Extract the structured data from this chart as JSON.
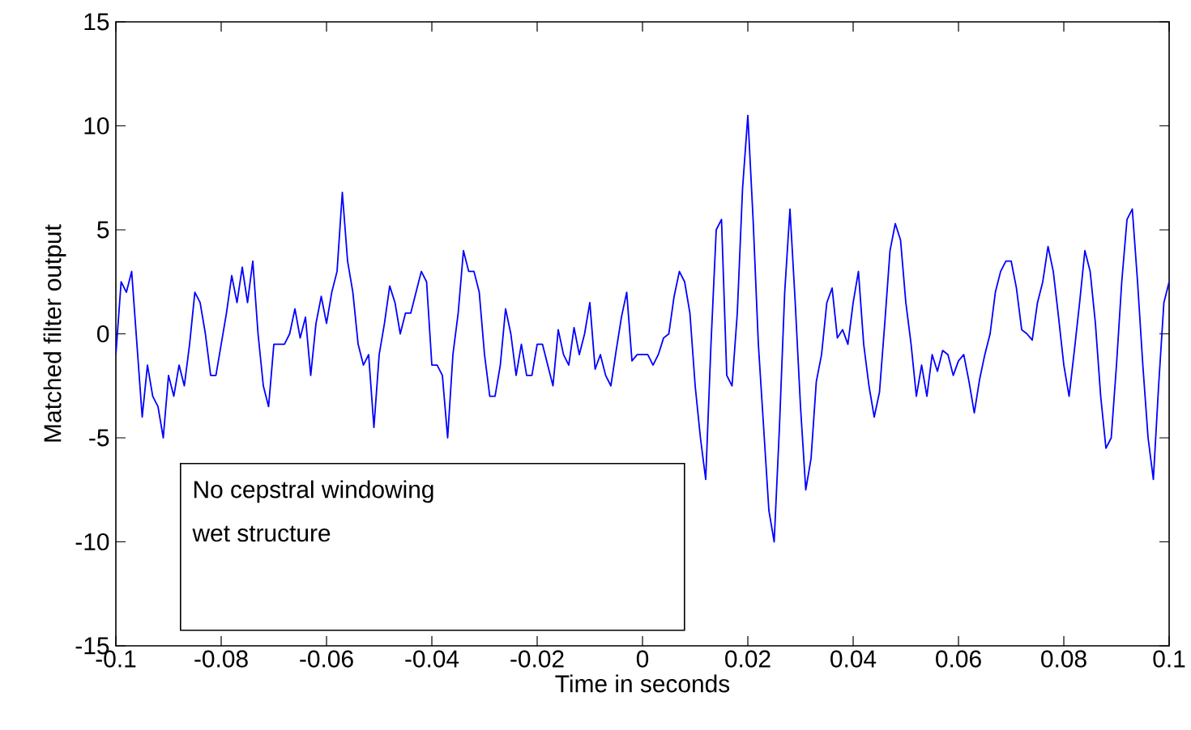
{
  "chart_data": {
    "type": "line",
    "xlabel": "Time in seconds",
    "ylabel": "Matched filter output",
    "annotations": [
      "No cepstral windowing",
      "wet structure"
    ],
    "xlim": [
      -0.1,
      0.1
    ],
    "ylim": [
      -15,
      15
    ],
    "xticks": [
      -0.1,
      -0.08,
      -0.06,
      -0.04,
      -0.02,
      0,
      0.02,
      0.04,
      0.06,
      0.08,
      0.1
    ],
    "yticks": [
      -15,
      -10,
      -5,
      0,
      5,
      10,
      15
    ],
    "grid": false,
    "marker": "none",
    "line_style": "solid",
    "series": [
      {
        "color": "#0000ff",
        "x": [
          -0.1,
          -0.099,
          -0.098,
          -0.097,
          -0.096,
          -0.095,
          -0.094,
          -0.093,
          -0.092,
          -0.091,
          -0.09,
          -0.089,
          -0.088,
          -0.087,
          -0.086,
          -0.085,
          -0.084,
          -0.083,
          -0.082,
          -0.081,
          -0.08,
          -0.079,
          -0.078,
          -0.077,
          -0.076,
          -0.075,
          -0.074,
          -0.073,
          -0.072,
          -0.071,
          -0.07,
          -0.069,
          -0.068,
          -0.067,
          -0.066,
          -0.065,
          -0.064,
          -0.063,
          -0.062,
          -0.061,
          -0.06,
          -0.059,
          -0.058,
          -0.057,
          -0.056,
          -0.055,
          -0.054,
          -0.053,
          -0.052,
          -0.051,
          -0.05,
          -0.049,
          -0.048,
          -0.047,
          -0.046,
          -0.045,
          -0.044,
          -0.043,
          -0.042,
          -0.041,
          -0.04,
          -0.039,
          -0.038,
          -0.037,
          -0.036,
          -0.035,
          -0.034,
          -0.033,
          -0.032,
          -0.031,
          -0.03,
          -0.029,
          -0.028,
          -0.027,
          -0.026,
          -0.025,
          -0.024,
          -0.023,
          -0.022,
          -0.021,
          -0.02,
          -0.019,
          -0.018,
          -0.017,
          -0.016,
          -0.015,
          -0.014,
          -0.013,
          -0.012,
          -0.011,
          -0.01,
          -0.009,
          -0.008,
          -0.007,
          -0.006,
          -0.005,
          -0.004,
          -0.003,
          -0.002,
          -0.001,
          0,
          0.001,
          0.002,
          0.003,
          0.004,
          0.005,
          0.006,
          0.007,
          0.008,
          0.009,
          0.01,
          0.011,
          0.012,
          0.013,
          0.014,
          0.015,
          0.016,
          0.017,
          0.018,
          0.019,
          0.02,
          0.021,
          0.022,
          0.023,
          0.024,
          0.025,
          0.026,
          0.027,
          0.028,
          0.029,
          0.03,
          0.031,
          0.032,
          0.033,
          0.034,
          0.035,
          0.036,
          0.037,
          0.038,
          0.039,
          0.04,
          0.041,
          0.042,
          0.043,
          0.044,
          0.045,
          0.046,
          0.047,
          0.048,
          0.049,
          0.05,
          0.051,
          0.052,
          0.053,
          0.054,
          0.055,
          0.056,
          0.057,
          0.058,
          0.059,
          0.06,
          0.061,
          0.062,
          0.063,
          0.064,
          0.065,
          0.066,
          0.067,
          0.068,
          0.069,
          0.07,
          0.071,
          0.072,
          0.073,
          0.074,
          0.075,
          0.076,
          0.077,
          0.078,
          0.079,
          0.08,
          0.081,
          0.082,
          0.083,
          0.084,
          0.085,
          0.086,
          0.087,
          0.088,
          0.089,
          0.09,
          0.091,
          0.092,
          0.093,
          0.094,
          0.095,
          0.096,
          0.097,
          0.098,
          0.099,
          0.1
        ],
        "values": [
          -1,
          2.5,
          2,
          3,
          -0.5,
          -4,
          -1.5,
          -3,
          -3.5,
          -5,
          -2,
          -3,
          -1.5,
          -2.5,
          -0.5,
          2,
          1.5,
          0,
          -2,
          -2,
          -0.5,
          1,
          2.8,
          1.5,
          3.2,
          1.5,
          3.5,
          0,
          -2.5,
          -3.5,
          -0.5,
          -0.5,
          -0.5,
          0,
          1.2,
          -0.2,
          0.8,
          -2,
          0.5,
          1.8,
          0.5,
          2,
          3,
          6.8,
          3.5,
          2,
          -0.5,
          -1.5,
          -1,
          -4.5,
          -1,
          0.5,
          2.3,
          1.5,
          0,
          1,
          1,
          2,
          3,
          2.5,
          -1.5,
          -1.5,
          -2,
          -5,
          -1,
          1,
          4,
          3,
          3,
          2,
          -1,
          -3,
          -3,
          -1.5,
          1.2,
          0,
          -2,
          -0.5,
          -2,
          -2,
          -0.5,
          -0.5,
          -1.5,
          -2.5,
          0.2,
          -1,
          -1.5,
          0.3,
          -1,
          0,
          1.5,
          -1.7,
          -1,
          -2,
          -2.5,
          -0.8,
          0.8,
          2,
          -1.3,
          -1,
          -1,
          -1,
          -1.5,
          -1,
          -0.2,
          0,
          1.8,
          3,
          2.5,
          1,
          -2.5,
          -5,
          -7,
          -0.5,
          5,
          5.5,
          -2,
          -2.5,
          1,
          7,
          10.5,
          5.5,
          -0.5,
          -4.5,
          -8.5,
          -10,
          -4.5,
          2,
          6,
          1.5,
          -3.5,
          -7.5,
          -6,
          -2.3,
          -1,
          1.5,
          2.2,
          -0.2,
          0.2,
          -0.5,
          1.5,
          3,
          -0.5,
          -2.5,
          -4,
          -2.8,
          0.5,
          4,
          5.3,
          4.5,
          1.5,
          -0.5,
          -3,
          -1.5,
          -3,
          -1,
          -1.8,
          -0.8,
          -1,
          -2,
          -1.3,
          -1,
          -2.3,
          -3.8,
          -2.2,
          -1,
          0,
          2,
          3,
          3.5,
          3.5,
          2.2,
          0.2,
          0,
          -0.3,
          1.5,
          2.5,
          4.2,
          3,
          0.8,
          -1.5,
          -3,
          -0.8,
          1.5,
          4,
          3,
          0.5,
          -3,
          -5.5,
          -5,
          -1.5,
          2.5,
          5.5,
          6,
          2.5,
          -1.5,
          -5,
          -7,
          -2.5,
          1.5,
          2.5
        ]
      }
    ]
  }
}
